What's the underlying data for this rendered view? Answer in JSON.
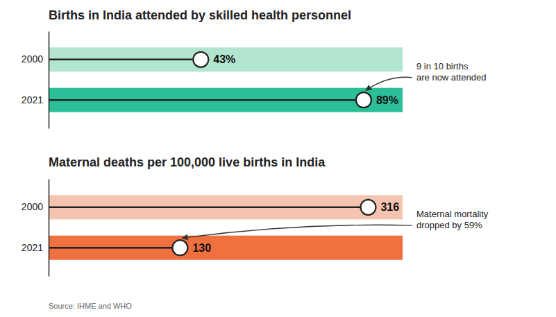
{
  "chart_data": [
    {
      "type": "lollipop",
      "orientation": "horizontal",
      "title": "Births in India attended by skilled health personnel",
      "categories": [
        "2000",
        "2021"
      ],
      "values": [
        43,
        89
      ],
      "value_labels": [
        "43%",
        "89%"
      ],
      "colors": [
        "#b2e5d0",
        "#2bbf99"
      ],
      "xlim": [
        0,
        100
      ],
      "data_labels": true,
      "tick_labels": "y",
      "grid": false,
      "annotation": "9 in 10 births\nare now attended"
    },
    {
      "type": "lollipop",
      "orientation": "horizontal",
      "title": "Maternal deaths per 100,000 live births in India",
      "categories": [
        "2000",
        "2021"
      ],
      "values": [
        316,
        130
      ],
      "colors": [
        "#f5c4b0",
        "#f07040"
      ],
      "xlim": [
        0,
        350
      ],
      "data_labels": true,
      "tick_labels": "y",
      "grid": false,
      "annotation": "Maternal mortality\ndropped by 59%",
      "source": "Source: IHME and WHO"
    }
  ]
}
